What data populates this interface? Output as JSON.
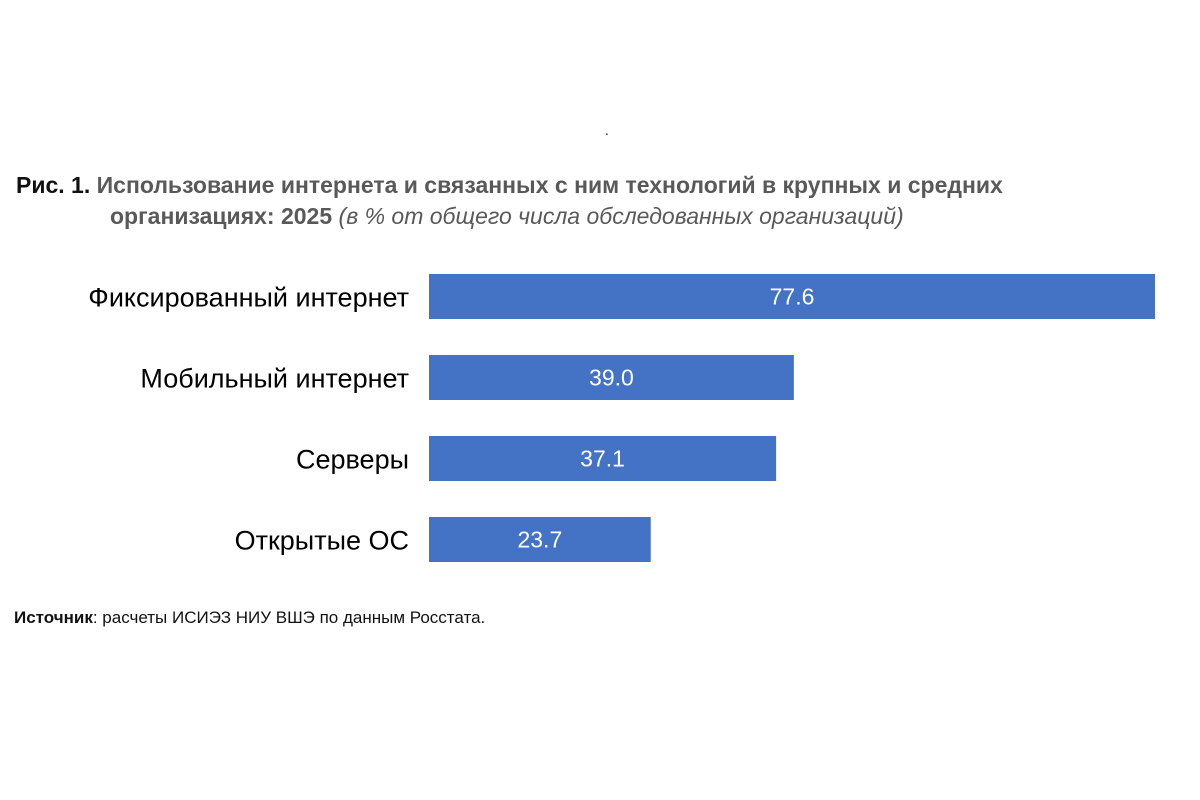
{
  "decor": {
    "dot": "."
  },
  "title": {
    "number": "Рис. 1.",
    "text_line1": "Использование интернета и связанных с ним технологий в крупных и средних",
    "text_line2": "организациях: 2025",
    "unit": "(в % от общего числа обследованных организаций)"
  },
  "source": {
    "label": "Источник",
    "text": ": расчеты ИСИЭЗ НИУ ВШЭ по данным Росстата."
  },
  "chart_data": {
    "type": "bar",
    "orientation": "horizontal",
    "categories": [
      "Фиксированный интернет",
      "Мобильный интернет",
      "Серверы",
      "Открытые ОС"
    ],
    "values": [
      77.6,
      39.0,
      37.1,
      23.7
    ],
    "value_labels": [
      "77.6",
      "39.0",
      "37.1",
      "23.7"
    ],
    "bar_color": "#4472C4",
    "value_label_color": "#FFFFFF",
    "xlim": [
      0,
      77.6
    ],
    "grid": false,
    "legend": "none",
    "axes_visible": false
  }
}
